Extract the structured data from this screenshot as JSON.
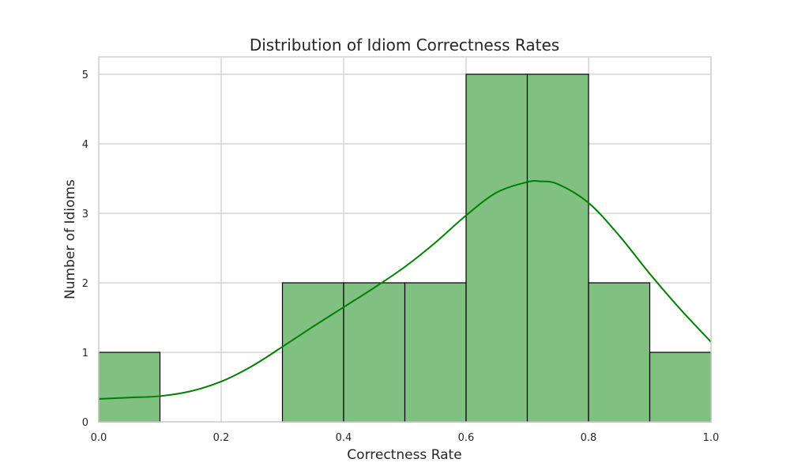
{
  "chart_data": {
    "type": "bar",
    "title": "Distribution of Idiom Correctness Rates",
    "xlabel": "Correctness Rate",
    "ylabel": "Number of Idioms",
    "xlim": [
      0.0,
      1.0
    ],
    "ylim": [
      0,
      5.25
    ],
    "xticks": [
      0.0,
      0.2,
      0.4,
      0.6,
      0.8,
      1.0
    ],
    "xtick_labels": [
      "0.0",
      "0.2",
      "0.4",
      "0.6",
      "0.8",
      "1.0"
    ],
    "yticks": [
      0,
      1,
      2,
      3,
      4,
      5
    ],
    "ytick_labels": [
      "0",
      "1",
      "2",
      "3",
      "4",
      "5"
    ],
    "grid": true,
    "bins": [
      {
        "x0": 0.0,
        "x1": 0.1,
        "count": 1
      },
      {
        "x0": 0.1,
        "x1": 0.2,
        "count": 0
      },
      {
        "x0": 0.2,
        "x1": 0.3,
        "count": 0
      },
      {
        "x0": 0.3,
        "x1": 0.4,
        "count": 2
      },
      {
        "x0": 0.4,
        "x1": 0.5,
        "count": 2
      },
      {
        "x0": 0.5,
        "x1": 0.6,
        "count": 2
      },
      {
        "x0": 0.6,
        "x1": 0.7,
        "count": 5
      },
      {
        "x0": 0.7,
        "x1": 0.8,
        "count": 5
      },
      {
        "x0": 0.8,
        "x1": 0.9,
        "count": 2
      },
      {
        "x0": 0.9,
        "x1": 1.0,
        "count": 1
      }
    ],
    "kde": {
      "x": [
        0.0,
        0.05,
        0.1,
        0.15,
        0.2,
        0.25,
        0.3,
        0.35,
        0.4,
        0.45,
        0.5,
        0.55,
        0.6,
        0.65,
        0.7,
        0.72,
        0.75,
        0.8,
        0.85,
        0.9,
        0.95,
        1.0
      ],
      "y": [
        0.33,
        0.35,
        0.37,
        0.44,
        0.58,
        0.8,
        1.08,
        1.37,
        1.65,
        1.93,
        2.23,
        2.58,
        2.97,
        3.3,
        3.45,
        3.46,
        3.42,
        3.15,
        2.68,
        2.13,
        1.62,
        1.15
      ]
    },
    "colors": {
      "bar_fill": "#80c080",
      "bar_edge": "#000000",
      "kde_line": "#008000",
      "grid": "#cccccc"
    }
  }
}
